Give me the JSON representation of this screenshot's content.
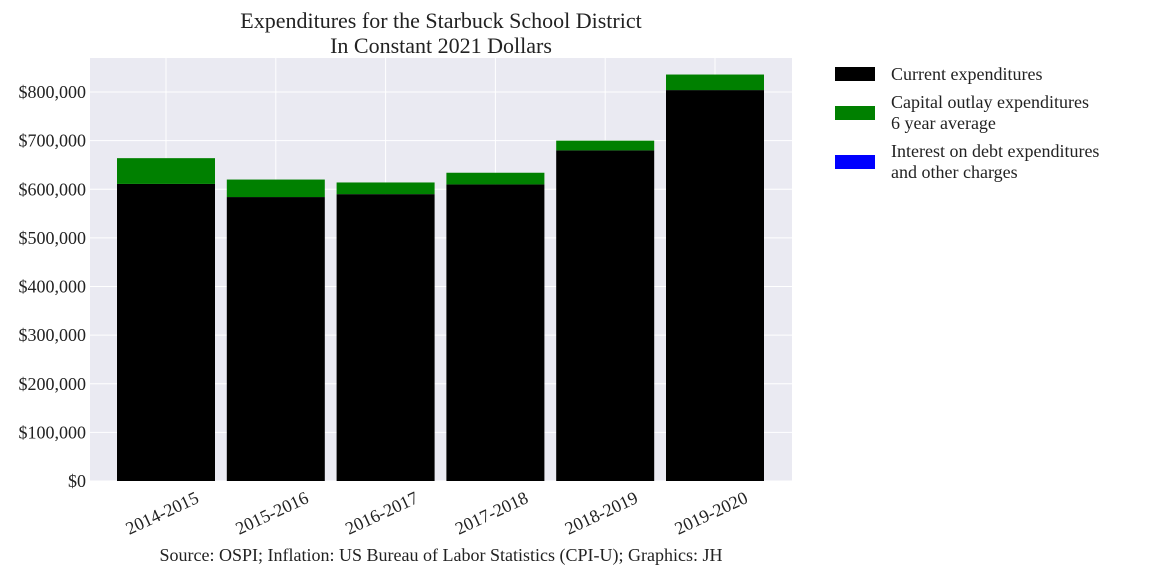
{
  "chart_data": {
    "type": "bar",
    "stacked": true,
    "title": [
      "Expenditures for the Starbuck School District",
      "In Constant 2021 Dollars"
    ],
    "categories": [
      "2014-2015",
      "2015-2016",
      "2016-2017",
      "2017-2018",
      "2018-2019",
      "2019-2020"
    ],
    "series": [
      {
        "name": "Current expenditures",
        "color": "#000000",
        "values": [
          611000,
          584000,
          590000,
          610000,
          680000,
          804000
        ]
      },
      {
        "name": "Capital outlay expenditures\n6 year average",
        "color": "#008000",
        "values": [
          53000,
          36000,
          24000,
          24000,
          20000,
          32000
        ]
      },
      {
        "name": "Interest on debt expenditures\nand other charges",
        "color": "#0000ff",
        "values": [
          0,
          0,
          0,
          0,
          0,
          0
        ]
      }
    ],
    "ylim": [
      0,
      870000
    ],
    "yticks": [
      0,
      100000,
      200000,
      300000,
      400000,
      500000,
      600000,
      700000,
      800000
    ],
    "ytick_labels": [
      "$0",
      "$100,000",
      "$200,000",
      "$300,000",
      "$400,000",
      "$500,000",
      "$600,000",
      "$700,000",
      "$800,000"
    ],
    "xlabel": "",
    "ylabel": "",
    "grid": true,
    "background": "#eaeaf2",
    "legend_position": "outside-right",
    "source_note": "Source: OSPI; Inflation: US Bureau of Labor Statistics (CPI-U); Graphics: JH"
  }
}
